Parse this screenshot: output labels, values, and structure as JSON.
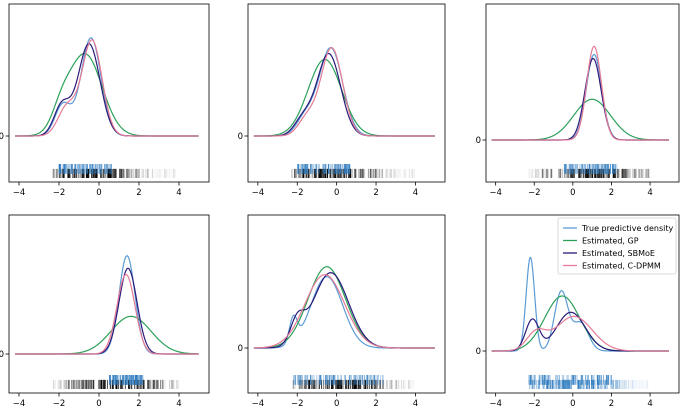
{
  "chart_data": {
    "type": "line",
    "x_range": [
      -4.5,
      5.5
    ],
    "x_ticks": [
      -4,
      -2,
      0,
      2,
      4
    ],
    "y_ticks": [
      0
    ],
    "legend_location": "upper right of bottom-right panel",
    "legend": [
      "True predictive density",
      "Estimated, GP",
      "Estimated, SBMoE",
      "Estimated, C-DPMM"
    ],
    "colors": {
      "true": "#5b9bd5",
      "gp": "#2ca05a",
      "sbmoe": "#2a1a7a",
      "cdpmm": "#e57b96",
      "rug_blue": "#2e7bbf",
      "rug_black": "#000000"
    },
    "panels": [
      {
        "ymax": 0.55,
        "rug": "black",
        "rug_range": [
          -2.3,
          4
        ],
        "rug_center": -0.4,
        "rug_blue_range": [
          -2.0,
          0.7
        ],
        "series": [
          {
            "name": "True predictive density",
            "components": [
              [
                1,
                -0.4,
                0.5
              ],
              [
                0.32,
                -1.8,
                0.4
              ]
            ],
            "peak": 0.5
          },
          {
            "name": "Estimated, GP",
            "components": [
              [
                1,
                -0.7,
                0.85
              ],
              [
                0.2,
                -1.9,
                0.45
              ]
            ],
            "peak": 0.42
          },
          {
            "name": "Estimated, SBMoE",
            "components": [
              [
                1,
                -0.5,
                0.55
              ],
              [
                0.33,
                -1.85,
                0.4
              ]
            ],
            "peak": 0.47
          },
          {
            "name": "Estimated, C-DPMM",
            "components": [
              [
                1,
                -0.35,
                0.5
              ],
              [
                0.3,
                -1.6,
                0.45
              ]
            ],
            "peak": 0.49
          }
        ]
      },
      {
        "ymax": 0.55,
        "rug": "black",
        "rug_range": [
          -2.3,
          4
        ],
        "rug_center": -0.4,
        "rug_blue_range": [
          -2.0,
          0.7
        ],
        "series": [
          {
            "name": "True predictive density",
            "components": [
              [
                1,
                -0.3,
                0.6
              ],
              [
                0.2,
                -1.6,
                0.45
              ]
            ],
            "peak": 0.45
          },
          {
            "name": "Estimated, GP",
            "components": [
              [
                1,
                -0.6,
                0.85
              ]
            ],
            "peak": 0.39
          },
          {
            "name": "Estimated, SBMoE",
            "components": [
              [
                1,
                -0.4,
                0.6
              ],
              [
                0.2,
                -1.7,
                0.45
              ]
            ],
            "peak": 0.42
          },
          {
            "name": "Estimated, C-DPMM",
            "components": [
              [
                1,
                -0.25,
                0.55
              ],
              [
                0.2,
                -1.5,
                0.45
              ]
            ],
            "peak": 0.45
          }
        ]
      },
      {
        "ymax": 0.55,
        "rug": "black",
        "rug_range": [
          -2.3,
          4
        ],
        "rug_center": 1.2,
        "rug_blue_range": [
          -0.5,
          2.3
        ],
        "series": [
          {
            "name": "True predictive density",
            "components": [
              [
                1,
                1.1,
                0.4
              ]
            ],
            "peak": 0.42
          },
          {
            "name": "Estimated, GP",
            "components": [
              [
                1,
                1.0,
                0.95
              ]
            ],
            "peak": 0.2
          },
          {
            "name": "Estimated, SBMoE",
            "components": [
              [
                1,
                1.05,
                0.42
              ]
            ],
            "peak": 0.4
          },
          {
            "name": "Estimated, C-DPMM",
            "components": [
              [
                1,
                1.1,
                0.38
              ]
            ],
            "peak": 0.46
          }
        ]
      },
      {
        "ymax": 0.55,
        "rug": "black",
        "rug_range": [
          -2.3,
          4
        ],
        "rug_center": 0.9,
        "rug_blue_range": [
          0.5,
          2.2
        ],
        "series": [
          {
            "name": "True predictive density",
            "components": [
              [
                1,
                1.4,
                0.4
              ]
            ],
            "peak": 0.47
          },
          {
            "name": "Estimated, GP",
            "components": [
              [
                1,
                1.6,
                1.0
              ]
            ],
            "peak": 0.18
          },
          {
            "name": "Estimated, SBMoE",
            "components": [
              [
                1,
                1.45,
                0.45
              ]
            ],
            "peak": 0.41
          },
          {
            "name": "Estimated, C-DPMM",
            "components": [
              [
                1,
                1.35,
                0.45
              ]
            ],
            "peak": 0.38
          }
        ]
      },
      {
        "ymax": 0.55,
        "rug": "black",
        "rug_range": [
          -2.3,
          4
        ],
        "rug_center": 0.3,
        "rug_blue_range": [
          -2.2,
          2.4
        ],
        "series": [
          {
            "name": "True predictive density",
            "components": [
              [
                1,
                -0.5,
                0.8
              ],
              [
                0.35,
                -2.2,
                0.2
              ]
            ],
            "peak": 0.36
          },
          {
            "name": "Estimated, GP",
            "components": [
              [
                1,
                -0.5,
                0.95
              ]
            ],
            "peak": 0.41
          },
          {
            "name": "Estimated, SBMoE",
            "components": [
              [
                1,
                -0.3,
                0.9
              ],
              [
                0.3,
                -2.0,
                0.35
              ]
            ],
            "peak": 0.38
          },
          {
            "name": "Estimated, C-DPMM",
            "components": [
              [
                1,
                -0.6,
                1.0
              ]
            ],
            "peak": 0.37
          }
        ]
      },
      {
        "ymax": 0.55,
        "rug": "blue",
        "rug_range": [
          -2.3,
          4
        ],
        "rug_center": 0.0,
        "rug_blue_range": [
          -2.3,
          2.0
        ],
        "series": [
          {
            "name": "True predictive density",
            "components": [
              [
                1,
                -2.2,
                0.22
              ],
              [
                0.63,
                -0.6,
                0.35
              ],
              [
                0.3,
                0.4,
                0.4
              ]
            ],
            "peak": 0.46
          },
          {
            "name": "Estimated, GP",
            "components": [
              [
                1,
                -0.55,
                0.9
              ]
            ],
            "peak": 0.27
          },
          {
            "name": "Estimated, SBMoE",
            "components": [
              [
                0.8,
                -2.1,
                0.35
              ],
              [
                1,
                -0.1,
                0.75
              ]
            ],
            "peak": 0.19
          },
          {
            "name": "Estimated, C-DPMM",
            "components": [
              [
                0.5,
                -1.9,
                0.5
              ],
              [
                1,
                0.05,
                0.95
              ]
            ],
            "peak": 0.17
          }
        ]
      }
    ]
  }
}
